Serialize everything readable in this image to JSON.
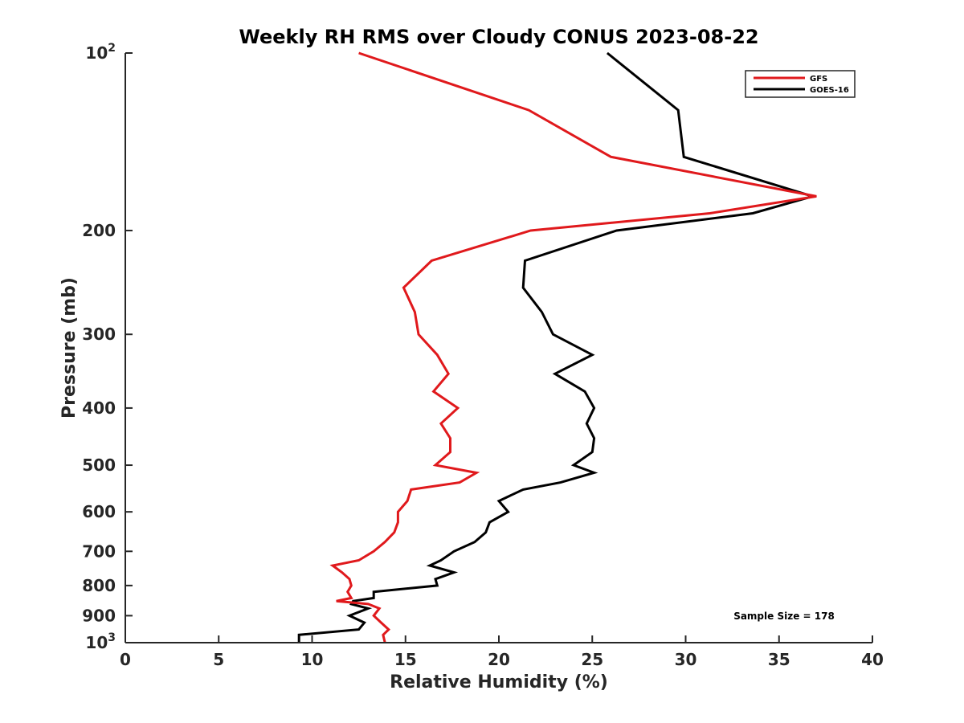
{
  "chart_data": {
    "type": "line",
    "title": "Weekly RH RMS over Cloudy CONUS 2023-08-22",
    "xlabel": "Relative Humidity (%)",
    "ylabel": "Pressure (mb)",
    "xlim": [
      0,
      40
    ],
    "ylim": [
      100,
      1000
    ],
    "yscale": "log",
    "ydirection": "reverse",
    "grid": false,
    "legend_position": "top-right",
    "x_ticks": [
      "0",
      "5",
      "10",
      "15",
      "20",
      "25",
      "30",
      "35",
      "40"
    ],
    "x_tick_values": [
      0,
      5,
      10,
      15,
      20,
      25,
      30,
      35,
      40
    ],
    "y_ticks": [
      {
        "value": 100,
        "base": "10",
        "exp": "2"
      },
      {
        "value": 200,
        "label": "200"
      },
      {
        "value": 300,
        "label": "300"
      },
      {
        "value": 400,
        "label": "400"
      },
      {
        "value": 500,
        "label": "500"
      },
      {
        "value": 600,
        "label": "600"
      },
      {
        "value": 700,
        "label": "700"
      },
      {
        "value": 800,
        "label": "800"
      },
      {
        "value": 900,
        "label": "900"
      },
      {
        "value": 1000,
        "base": "10",
        "exp": "3"
      }
    ],
    "annotation": "Sample Size = 178",
    "series": [
      {
        "name": "GFS",
        "color": "#e0191c",
        "points": [
          [
            12.5,
            100
          ],
          [
            21.6,
            125
          ],
          [
            26.0,
            150
          ],
          [
            37.0,
            175
          ],
          [
            31.3,
            187
          ],
          [
            21.7,
            200
          ],
          [
            16.4,
            225
          ],
          [
            14.9,
            250
          ],
          [
            15.5,
            275
          ],
          [
            15.7,
            300
          ],
          [
            16.7,
            325
          ],
          [
            17.3,
            350
          ],
          [
            16.5,
            375
          ],
          [
            17.8,
            400
          ],
          [
            16.9,
            425
          ],
          [
            17.4,
            450
          ],
          [
            17.4,
            475
          ],
          [
            16.6,
            500
          ],
          [
            18.8,
            515
          ],
          [
            17.9,
            535
          ],
          [
            15.3,
            550
          ],
          [
            15.1,
            575
          ],
          [
            14.6,
            600
          ],
          [
            14.6,
            625
          ],
          [
            14.4,
            650
          ],
          [
            13.9,
            675
          ],
          [
            13.3,
            700
          ],
          [
            12.5,
            725
          ],
          [
            11.1,
            740
          ],
          [
            11.6,
            760
          ],
          [
            12.0,
            780
          ],
          [
            12.1,
            800
          ],
          [
            11.9,
            820
          ],
          [
            12.1,
            840
          ],
          [
            11.3,
            850
          ],
          [
            13.0,
            860
          ],
          [
            13.6,
            875
          ],
          [
            13.3,
            900
          ],
          [
            13.7,
            925
          ],
          [
            14.1,
            950
          ],
          [
            13.8,
            970
          ],
          [
            13.9,
            1000
          ]
        ]
      },
      {
        "name": "GOES-16",
        "color": "#000000",
        "points": [
          [
            25.8,
            100
          ],
          [
            29.6,
            125
          ],
          [
            29.9,
            150
          ],
          [
            36.8,
            175
          ],
          [
            33.6,
            187
          ],
          [
            26.3,
            200
          ],
          [
            21.4,
            225
          ],
          [
            21.3,
            250
          ],
          [
            22.3,
            275
          ],
          [
            22.9,
            300
          ],
          [
            25.0,
            325
          ],
          [
            23.0,
            350
          ],
          [
            24.6,
            375
          ],
          [
            25.1,
            400
          ],
          [
            24.7,
            425
          ],
          [
            25.1,
            450
          ],
          [
            25.0,
            475
          ],
          [
            24.0,
            500
          ],
          [
            25.1,
            515
          ],
          [
            23.3,
            535
          ],
          [
            21.3,
            550
          ],
          [
            20.0,
            575
          ],
          [
            20.5,
            600
          ],
          [
            19.5,
            625
          ],
          [
            19.3,
            650
          ],
          [
            18.7,
            675
          ],
          [
            17.6,
            700
          ],
          [
            16.9,
            725
          ],
          [
            16.3,
            740
          ],
          [
            17.6,
            760
          ],
          [
            16.6,
            780
          ],
          [
            16.7,
            800
          ],
          [
            13.3,
            820
          ],
          [
            13.3,
            840
          ],
          [
            12.2,
            850
          ],
          [
            12.1,
            860
          ],
          [
            13.0,
            875
          ],
          [
            12.0,
            900
          ],
          [
            12.8,
            925
          ],
          [
            12.5,
            950
          ],
          [
            9.3,
            970
          ],
          [
            9.3,
            1000
          ]
        ]
      }
    ]
  }
}
